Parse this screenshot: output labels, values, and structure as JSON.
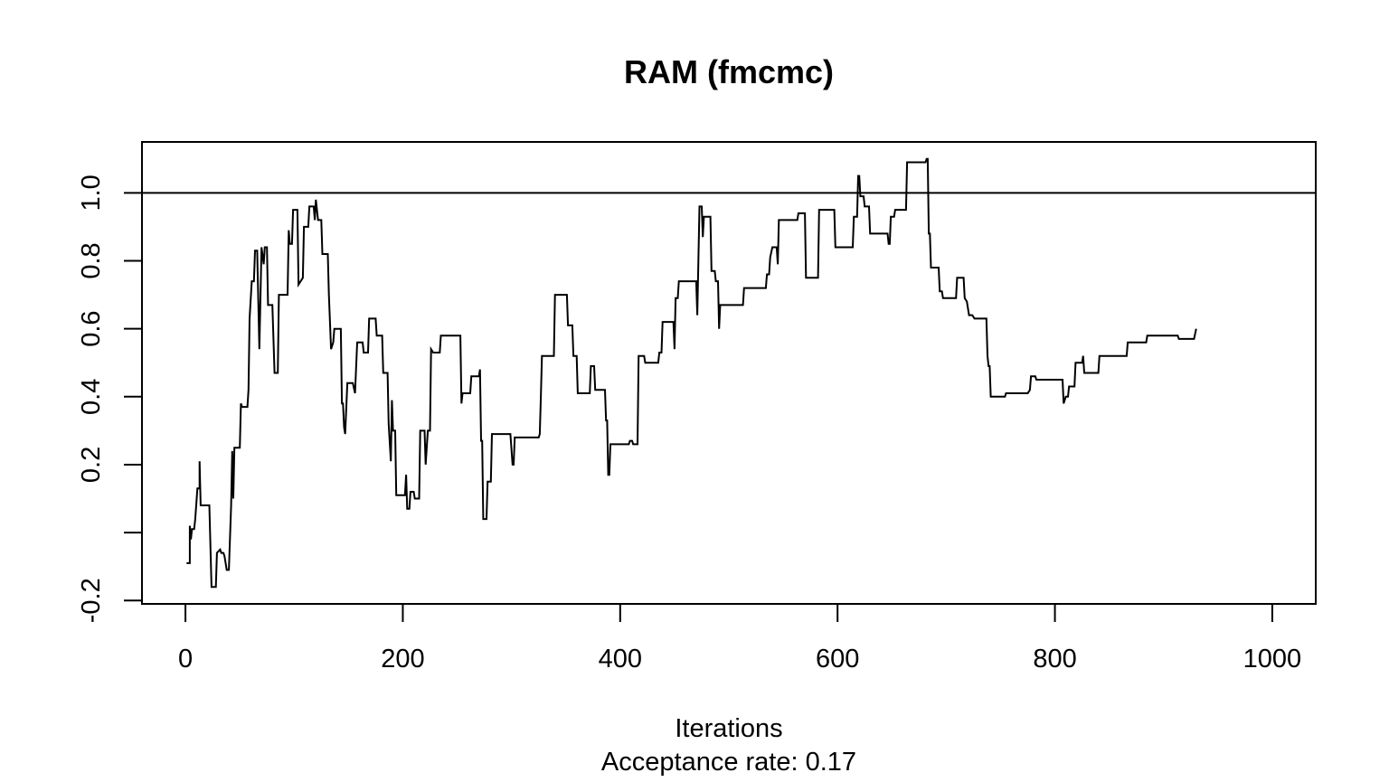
{
  "chart_data": {
    "type": "line",
    "title": "RAM (fmcmc)",
    "xlabel": "Iterations",
    "sublabel": "Acceptance rate: 0.17",
    "ylabel": "",
    "xlim": [
      -40,
      1040
    ],
    "ylim": [
      -0.21,
      1.15
    ],
    "xticks": [
      0,
      200,
      400,
      600,
      800,
      1000
    ],
    "yticks": [
      -0.2,
      0.0,
      0.2,
      0.4,
      0.6,
      0.8,
      1.0
    ],
    "ytick_labels": [
      "-0.2",
      "",
      "0.2",
      "0.4",
      "0.6",
      "0.8",
      "1.0"
    ],
    "hline": 1.0,
    "grid": false,
    "legend": "none",
    "line_color": "#000000",
    "series": [
      {
        "step": true,
        "points": [
          [
            1,
            -0.09
          ],
          [
            4,
            -0.09
          ],
          [
            4,
            0.02
          ],
          [
            5,
            -0.02
          ],
          [
            6,
            0.01
          ],
          [
            8,
            0.01
          ],
          [
            9,
            0.04
          ],
          [
            11,
            0.13
          ],
          [
            13,
            0.13
          ],
          [
            13,
            0.21
          ],
          [
            14,
            0.08
          ],
          [
            22,
            0.08
          ],
          [
            24,
            -0.16
          ],
          [
            28,
            -0.16
          ],
          [
            29,
            -0.06
          ],
          [
            32,
            -0.05
          ],
          [
            33,
            -0.06
          ],
          [
            35,
            -0.06
          ],
          [
            36,
            -0.07
          ],
          [
            38,
            -0.11
          ],
          [
            40,
            -0.11
          ],
          [
            42,
            0.08
          ],
          [
            43,
            0.24
          ],
          [
            44,
            0.1
          ],
          [
            45,
            0.25
          ],
          [
            50,
            0.25
          ],
          [
            51,
            0.38
          ],
          [
            52,
            0.37
          ],
          [
            57,
            0.37
          ],
          [
            58,
            0.42
          ],
          [
            59,
            0.63
          ],
          [
            61,
            0.74
          ],
          [
            63,
            0.74
          ],
          [
            64,
            0.83
          ],
          [
            66,
            0.83
          ],
          [
            68,
            0.54
          ],
          [
            70,
            0.84
          ],
          [
            72,
            0.79
          ],
          [
            73,
            0.84
          ],
          [
            75,
            0.84
          ],
          [
            76,
            0.67
          ],
          [
            80,
            0.67
          ],
          [
            82,
            0.47
          ],
          [
            85,
            0.47
          ],
          [
            86,
            0.7
          ],
          [
            94,
            0.7
          ],
          [
            95,
            0.89
          ],
          [
            96,
            0.85
          ],
          [
            98,
            0.85
          ],
          [
            99,
            0.95
          ],
          [
            103,
            0.95
          ],
          [
            104,
            0.73
          ],
          [
            106,
            0.74
          ],
          [
            108,
            0.75
          ],
          [
            109,
            0.9
          ],
          [
            113,
            0.9
          ],
          [
            114,
            0.96
          ],
          [
            118,
            0.96
          ],
          [
            119,
            0.92
          ],
          [
            120,
            0.98
          ],
          [
            122,
            0.92
          ],
          [
            125,
            0.92
          ],
          [
            126,
            0.82
          ],
          [
            131,
            0.82
          ],
          [
            132,
            0.7
          ],
          [
            134,
            0.54
          ],
          [
            136,
            0.56
          ],
          [
            137,
            0.6
          ],
          [
            143,
            0.6
          ],
          [
            144,
            0.38
          ],
          [
            145,
            0.38
          ],
          [
            146,
            0.31
          ],
          [
            147,
            0.29
          ],
          [
            149,
            0.44
          ],
          [
            154,
            0.44
          ],
          [
            156,
            0.41
          ],
          [
            158,
            0.56
          ],
          [
            163,
            0.56
          ],
          [
            164,
            0.53
          ],
          [
            168,
            0.53
          ],
          [
            169,
            0.63
          ],
          [
            175,
            0.63
          ],
          [
            176,
            0.58
          ],
          [
            181,
            0.58
          ],
          [
            182,
            0.47
          ],
          [
            186,
            0.47
          ],
          [
            187,
            0.32
          ],
          [
            189,
            0.21
          ],
          [
            190,
            0.39
          ],
          [
            191,
            0.3
          ],
          [
            193,
            0.3
          ],
          [
            194,
            0.11
          ],
          [
            202,
            0.11
          ],
          [
            203,
            0.17
          ],
          [
            204,
            0.07
          ],
          [
            206,
            0.07
          ],
          [
            207,
            0.12
          ],
          [
            210,
            0.12
          ],
          [
            211,
            0.1
          ],
          [
            215,
            0.1
          ],
          [
            216,
            0.3
          ],
          [
            220,
            0.3
          ],
          [
            221,
            0.2
          ],
          [
            223,
            0.3
          ],
          [
            225,
            0.3
          ],
          [
            226,
            0.54
          ],
          [
            228,
            0.53
          ],
          [
            234,
            0.53
          ],
          [
            235,
            0.58
          ],
          [
            253,
            0.58
          ],
          [
            254,
            0.38
          ],
          [
            255,
            0.41
          ],
          [
            262,
            0.41
          ],
          [
            263,
            0.46
          ],
          [
            270,
            0.46
          ],
          [
            271,
            0.48
          ],
          [
            272,
            0.27
          ],
          [
            273,
            0.27
          ],
          [
            274,
            0.04
          ],
          [
            277,
            0.04
          ],
          [
            278,
            0.15
          ],
          [
            281,
            0.15
          ],
          [
            282,
            0.29
          ],
          [
            299,
            0.29
          ],
          [
            301,
            0.2
          ],
          [
            302,
            0.2
          ],
          [
            303,
            0.28
          ],
          [
            325,
            0.28
          ],
          [
            326,
            0.29
          ],
          [
            327,
            0.4
          ],
          [
            328,
            0.52
          ],
          [
            339,
            0.52
          ],
          [
            340,
            0.7
          ],
          [
            351,
            0.7
          ],
          [
            352,
            0.61
          ],
          [
            356,
            0.61
          ],
          [
            357,
            0.52
          ],
          [
            360,
            0.52
          ],
          [
            361,
            0.41
          ],
          [
            372,
            0.41
          ],
          [
            373,
            0.49
          ],
          [
            376,
            0.49
          ],
          [
            377,
            0.42
          ],
          [
            386,
            0.42
          ],
          [
            387,
            0.33
          ],
          [
            388,
            0.33
          ],
          [
            389,
            0.17
          ],
          [
            390,
            0.17
          ],
          [
            391,
            0.26
          ],
          [
            408,
            0.26
          ],
          [
            409,
            0.27
          ],
          [
            411,
            0.27
          ],
          [
            412,
            0.26
          ],
          [
            416,
            0.26
          ],
          [
            417,
            0.52
          ],
          [
            422,
            0.52
          ],
          [
            423,
            0.5
          ],
          [
            435,
            0.5
          ],
          [
            436,
            0.53
          ],
          [
            438,
            0.53
          ],
          [
            439,
            0.62
          ],
          [
            449,
            0.62
          ],
          [
            450,
            0.54
          ],
          [
            451,
            0.69
          ],
          [
            453,
            0.69
          ],
          [
            454,
            0.74
          ],
          [
            470,
            0.74
          ],
          [
            471,
            0.64
          ],
          [
            473,
            0.96
          ],
          [
            475,
            0.96
          ],
          [
            476,
            0.87
          ],
          [
            477,
            0.93
          ],
          [
            483,
            0.93
          ],
          [
            484,
            0.77
          ],
          [
            487,
            0.77
          ],
          [
            488,
            0.74
          ],
          [
            490,
            0.74
          ],
          [
            491,
            0.6
          ],
          [
            492,
            0.67
          ],
          [
            513,
            0.67
          ],
          [
            514,
            0.72
          ],
          [
            534,
            0.72
          ],
          [
            535,
            0.76
          ],
          [
            537,
            0.76
          ],
          [
            538,
            0.81
          ],
          [
            540,
            0.84
          ],
          [
            544,
            0.84
          ],
          [
            545,
            0.79
          ],
          [
            546,
            0.92
          ],
          [
            563,
            0.92
          ],
          [
            564,
            0.94
          ],
          [
            570,
            0.94
          ],
          [
            571,
            0.75
          ],
          [
            582,
            0.75
          ],
          [
            583,
            0.95
          ],
          [
            597,
            0.95
          ],
          [
            598,
            0.84
          ],
          [
            614,
            0.84
          ],
          [
            615,
            0.93
          ],
          [
            618,
            0.93
          ],
          [
            619,
            1.05
          ],
          [
            620,
            1.05
          ],
          [
            621,
            0.99
          ],
          [
            624,
            0.99
          ],
          [
            625,
            0.96
          ],
          [
            629,
            0.96
          ],
          [
            630,
            0.88
          ],
          [
            646,
            0.88
          ],
          [
            647,
            0.85
          ],
          [
            648,
            0.85
          ],
          [
            649,
            0.93
          ],
          [
            652,
            0.93
          ],
          [
            653,
            0.95
          ],
          [
            663,
            0.95
          ],
          [
            664,
            1.09
          ],
          [
            681,
            1.09
          ],
          [
            682,
            1.1
          ],
          [
            683,
            1.1
          ],
          [
            684,
            0.88
          ],
          [
            685,
            0.88
          ],
          [
            686,
            0.78
          ],
          [
            693,
            0.78
          ],
          [
            694,
            0.71
          ],
          [
            696,
            0.71
          ],
          [
            697,
            0.69
          ],
          [
            709,
            0.69
          ],
          [
            710,
            0.75
          ],
          [
            716,
            0.75
          ],
          [
            717,
            0.69
          ],
          [
            719,
            0.68
          ],
          [
            721,
            0.64
          ],
          [
            724,
            0.64
          ],
          [
            726,
            0.63
          ],
          [
            737,
            0.63
          ],
          [
            738,
            0.52
          ],
          [
            739,
            0.49
          ],
          [
            740,
            0.49
          ],
          [
            741,
            0.4
          ],
          [
            754,
            0.4
          ],
          [
            755,
            0.41
          ],
          [
            775,
            0.41
          ],
          [
            777,
            0.42
          ],
          [
            778,
            0.46
          ],
          [
            782,
            0.46
          ],
          [
            783,
            0.45
          ],
          [
            807,
            0.45
          ],
          [
            808,
            0.38
          ],
          [
            810,
            0.4
          ],
          [
            812,
            0.4
          ],
          [
            813,
            0.43
          ],
          [
            818,
            0.43
          ],
          [
            819,
            0.5
          ],
          [
            825,
            0.5
          ],
          [
            826,
            0.52
          ],
          [
            827,
            0.47
          ],
          [
            840,
            0.47
          ],
          [
            841,
            0.52
          ],
          [
            866,
            0.52
          ],
          [
            867,
            0.56
          ],
          [
            884,
            0.56
          ],
          [
            885,
            0.58
          ],
          [
            913,
            0.58
          ],
          [
            914,
            0.57
          ],
          [
            928,
            0.57
          ],
          [
            930,
            0.6
          ]
        ]
      }
    ]
  }
}
